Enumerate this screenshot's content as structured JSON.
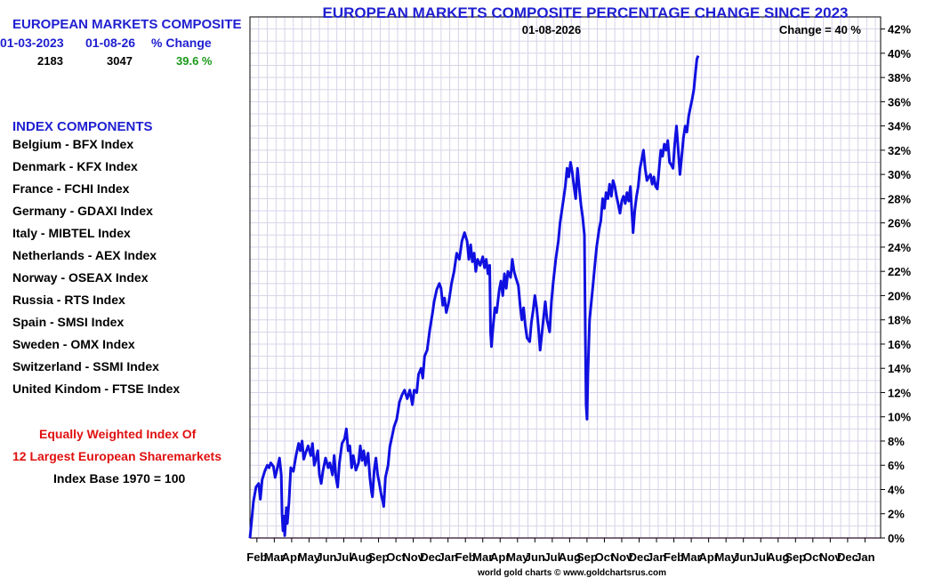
{
  "colors": {
    "accent_blue": "#1f1fd1",
    "positive_green": "#1a9a1a",
    "note_red": "#e01010",
    "line": "#1010e0",
    "grid": "#d8d2e8",
    "zero_line": "#e8a0e8"
  },
  "summary": {
    "title": "EUROPEAN MARKETS COMPOSITE",
    "headers": [
      "01-03-2023",
      "01-08-26",
      "% Change"
    ],
    "values": [
      "2183",
      "3047",
      "39.6 %"
    ]
  },
  "components": {
    "title": "INDEX COMPONENTS",
    "items": [
      "Belgium - BFX Index",
      "Denmark - KFX Index",
      "France - FCHI Index",
      "Germany - GDAXI Index",
      "Italy - MIBTEL Index",
      "Netherlands - AEX Index",
      "Norway - OSEAX Index",
      "Russia - RTS Index",
      "Spain - SMSI Index",
      "Sweden - OMX Index",
      "Switzerland - SSMI Index",
      "United Kindom - FTSE Index"
    ]
  },
  "notes": {
    "line1": "Equally Weighted Index Of",
    "line2": "12 Largest European Sharemarkets",
    "line3": "Index Base 1970 = 100"
  },
  "chart_data": {
    "type": "line",
    "title": "EUROPEAN MARKETS COMPOSITE PERCENTAGE CHANGE SINCE 2023",
    "date_label": "01-08-2026",
    "change_label": "Change = 40 %",
    "footer": "world gold charts © www.goldchartsrus.com",
    "ylim": [
      0,
      43
    ],
    "y_ticks": [
      "0%",
      "2%",
      "4%",
      "6%",
      "8%",
      "10%",
      "12%",
      "14%",
      "16%",
      "18%",
      "20%",
      "22%",
      "24%",
      "26%",
      "28%",
      "30%",
      "32%",
      "34%",
      "36%",
      "38%",
      "40%",
      "42%"
    ],
    "x_ticks": [
      "Feb",
      "Mar",
      "Apr",
      "May",
      "Jun",
      "Jul",
      "Aug",
      "Sep",
      "Oct",
      "Nov",
      "Dec",
      "Jan",
      "Feb",
      "Mar",
      "Apr",
      "May",
      "Jun",
      "Jul",
      "Aug",
      "Sep",
      "Oct",
      "Nov",
      "Dec",
      "Jan",
      "Feb",
      "Mar",
      "Apr",
      "May",
      "Jun",
      "Jul",
      "Aug",
      "Sep",
      "Oct",
      "Nov",
      "Dec",
      "Jan"
    ],
    "x_tick_labels_shown": [
      "Feb",
      "Mar",
      "Apr",
      "May",
      "Jun",
      "Jul",
      "Aug",
      "Sep",
      "Oct",
      "Nov",
      "Dec",
      "Jan",
      "Feb",
      "Mar",
      "Apr",
      "May",
      "Jun",
      "Jul",
      "Aug",
      "Sep",
      "Oct",
      "Nov",
      "Dec",
      "Jan",
      "Feb",
      "Mar",
      "Apr",
      "May",
      "Jun",
      "Jul",
      "Aug",
      "Sep",
      "Oct",
      "Nov",
      "Dec",
      "Jan"
    ],
    "x_range_months": [
      0,
      36.3
    ],
    "series": [
      {
        "name": "European Markets Composite % change",
        "points": [
          [
            0.0,
            0.0
          ],
          [
            0.1,
            1.5
          ],
          [
            0.2,
            3.0
          ],
          [
            0.35,
            4.2
          ],
          [
            0.5,
            4.5
          ],
          [
            0.6,
            3.2
          ],
          [
            0.7,
            4.8
          ],
          [
            0.85,
            5.5
          ],
          [
            1.0,
            6.0
          ],
          [
            1.1,
            5.8
          ],
          [
            1.2,
            6.2
          ],
          [
            1.35,
            5.9
          ],
          [
            1.45,
            5.0
          ],
          [
            1.55,
            5.6
          ],
          [
            1.7,
            6.6
          ],
          [
            1.8,
            5.2
          ],
          [
            1.85,
            2.0
          ],
          [
            1.9,
            0.6
          ],
          [
            1.95,
            1.8
          ],
          [
            2.0,
            0.2
          ],
          [
            2.1,
            2.5
          ],
          [
            2.15,
            1.2
          ],
          [
            2.25,
            3.0
          ],
          [
            2.35,
            5.8
          ],
          [
            2.5,
            5.5
          ],
          [
            2.65,
            6.8
          ],
          [
            2.8,
            7.8
          ],
          [
            2.9,
            7.2
          ],
          [
            3.0,
            8.0
          ],
          [
            3.1,
            6.5
          ],
          [
            3.2,
            7.0
          ],
          [
            3.35,
            7.6
          ],
          [
            3.5,
            6.8
          ],
          [
            3.6,
            7.8
          ],
          [
            3.7,
            6.0
          ],
          [
            3.8,
            6.5
          ],
          [
            3.9,
            7.2
          ],
          [
            4.0,
            5.2
          ],
          [
            4.1,
            4.5
          ],
          [
            4.2,
            5.5
          ],
          [
            4.35,
            6.6
          ],
          [
            4.5,
            5.8
          ],
          [
            4.6,
            6.2
          ],
          [
            4.75,
            5.2
          ],
          [
            4.85,
            6.8
          ],
          [
            4.95,
            5.0
          ],
          [
            5.05,
            4.2
          ],
          [
            5.15,
            6.2
          ],
          [
            5.3,
            7.8
          ],
          [
            5.45,
            8.2
          ],
          [
            5.55,
            9.0
          ],
          [
            5.65,
            7.2
          ],
          [
            5.75,
            7.6
          ],
          [
            5.85,
            5.8
          ],
          [
            5.95,
            6.8
          ],
          [
            6.1,
            5.6
          ],
          [
            6.25,
            6.2
          ],
          [
            6.35,
            7.6
          ],
          [
            6.45,
            6.4
          ],
          [
            6.55,
            7.2
          ],
          [
            6.65,
            6.0
          ],
          [
            6.8,
            7.0
          ],
          [
            6.9,
            5.0
          ],
          [
            7.0,
            3.8
          ],
          [
            7.05,
            3.4
          ],
          [
            7.15,
            5.6
          ],
          [
            7.25,
            6.6
          ],
          [
            7.35,
            5.2
          ],
          [
            7.45,
            4.5
          ],
          [
            7.55,
            3.6
          ],
          [
            7.65,
            3.0
          ],
          [
            7.7,
            2.6
          ],
          [
            7.8,
            5.0
          ],
          [
            7.95,
            6.0
          ],
          [
            8.05,
            7.5
          ],
          [
            8.15,
            8.2
          ],
          [
            8.3,
            9.2
          ],
          [
            8.45,
            9.8
          ],
          [
            8.6,
            11.2
          ],
          [
            8.75,
            11.8
          ],
          [
            8.9,
            12.2
          ],
          [
            9.05,
            11.5
          ],
          [
            9.2,
            12.2
          ],
          [
            9.35,
            11.0
          ],
          [
            9.45,
            12.2
          ],
          [
            9.6,
            12.0
          ],
          [
            9.7,
            13.5
          ],
          [
            9.85,
            14.0
          ],
          [
            9.95,
            13.2
          ],
          [
            10.05,
            15.0
          ],
          [
            10.2,
            15.5
          ],
          [
            10.35,
            17.2
          ],
          [
            10.5,
            18.5
          ],
          [
            10.6,
            19.5
          ],
          [
            10.75,
            20.5
          ],
          [
            10.9,
            21.0
          ],
          [
            11.0,
            20.6
          ],
          [
            11.1,
            19.2
          ],
          [
            11.2,
            19.8
          ],
          [
            11.3,
            18.6
          ],
          [
            11.45,
            19.5
          ],
          [
            11.6,
            21.0
          ],
          [
            11.75,
            22.0
          ],
          [
            11.9,
            23.5
          ],
          [
            12.05,
            23.0
          ],
          [
            12.2,
            24.5
          ],
          [
            12.35,
            25.2
          ],
          [
            12.5,
            24.5
          ],
          [
            12.6,
            23.0
          ],
          [
            12.7,
            24.2
          ],
          [
            12.8,
            22.8
          ],
          [
            12.9,
            23.5
          ],
          [
            13.0,
            22.0
          ],
          [
            13.1,
            23.0
          ],
          [
            13.25,
            22.5
          ],
          [
            13.4,
            23.2
          ],
          [
            13.5,
            22.3
          ],
          [
            13.6,
            23.0
          ],
          [
            13.7,
            21.8
          ],
          [
            13.8,
            22.5
          ],
          [
            13.85,
            17.0
          ],
          [
            13.9,
            15.8
          ],
          [
            14.0,
            17.5
          ],
          [
            14.1,
            19.0
          ],
          [
            14.2,
            18.6
          ],
          [
            14.35,
            20.5
          ],
          [
            14.45,
            21.2
          ],
          [
            14.55,
            20.0
          ],
          [
            14.65,
            21.8
          ],
          [
            14.75,
            20.6
          ],
          [
            14.85,
            22.0
          ],
          [
            15.0,
            21.5
          ],
          [
            15.1,
            23.0
          ],
          [
            15.2,
            22.0
          ],
          [
            15.3,
            21.5
          ],
          [
            15.45,
            20.8
          ],
          [
            15.55,
            19.2
          ],
          [
            15.65,
            18.0
          ],
          [
            15.75,
            19.0
          ],
          [
            15.85,
            17.5
          ],
          [
            15.95,
            16.5
          ],
          [
            16.1,
            16.2
          ],
          [
            16.2,
            17.8
          ],
          [
            16.3,
            18.8
          ],
          [
            16.4,
            20.0
          ],
          [
            16.5,
            19.0
          ],
          [
            16.6,
            17.5
          ],
          [
            16.7,
            15.5
          ],
          [
            16.8,
            16.8
          ],
          [
            16.9,
            18.2
          ],
          [
            17.0,
            19.5
          ],
          [
            17.1,
            18.0
          ],
          [
            17.25,
            17.0
          ],
          [
            17.35,
            19.5
          ],
          [
            17.45,
            21.0
          ],
          [
            17.6,
            23.0
          ],
          [
            17.75,
            24.5
          ],
          [
            17.85,
            26.0
          ],
          [
            18.0,
            27.5
          ],
          [
            18.15,
            29.0
          ],
          [
            18.25,
            30.5
          ],
          [
            18.35,
            29.8
          ],
          [
            18.45,
            31.0
          ],
          [
            18.55,
            30.2
          ],
          [
            18.65,
            29.0
          ],
          [
            18.75,
            28.0
          ],
          [
            18.85,
            30.5
          ],
          [
            18.95,
            29.0
          ],
          [
            19.05,
            27.5
          ],
          [
            19.15,
            26.5
          ],
          [
            19.25,
            25.0
          ],
          [
            19.3,
            17.0
          ],
          [
            19.35,
            11.0
          ],
          [
            19.4,
            9.8
          ],
          [
            19.45,
            13.5
          ],
          [
            19.55,
            18.0
          ],
          [
            19.65,
            19.5
          ],
          [
            19.75,
            21.0
          ],
          [
            19.85,
            22.5
          ],
          [
            19.95,
            24.0
          ],
          [
            20.1,
            25.5
          ],
          [
            20.2,
            26.2
          ],
          [
            20.3,
            28.0
          ],
          [
            20.4,
            27.2
          ],
          [
            20.5,
            28.5
          ],
          [
            20.6,
            28.0
          ],
          [
            20.7,
            29.2
          ],
          [
            20.8,
            28.2
          ],
          [
            20.9,
            29.5
          ],
          [
            21.0,
            29.0
          ],
          [
            21.1,
            28.2
          ],
          [
            21.2,
            27.5
          ],
          [
            21.3,
            26.8
          ],
          [
            21.4,
            27.8
          ],
          [
            21.5,
            28.2
          ],
          [
            21.6,
            27.6
          ],
          [
            21.7,
            28.5
          ],
          [
            21.8,
            27.8
          ],
          [
            21.9,
            29.0
          ],
          [
            22.0,
            26.5
          ],
          [
            22.05,
            25.2
          ],
          [
            22.15,
            27.0
          ],
          [
            22.25,
            28.2
          ],
          [
            22.35,
            29.0
          ],
          [
            22.45,
            30.5
          ],
          [
            22.55,
            31.2
          ],
          [
            22.65,
            32.0
          ],
          [
            22.75,
            30.5
          ],
          [
            22.85,
            29.5
          ],
          [
            22.95,
            29.8
          ],
          [
            23.05,
            30.0
          ],
          [
            23.15,
            29.2
          ],
          [
            23.25,
            29.8
          ],
          [
            23.35,
            29.0
          ],
          [
            23.45,
            28.8
          ],
          [
            23.55,
            30.5
          ],
          [
            23.65,
            32.0
          ],
          [
            23.75,
            31.5
          ],
          [
            23.85,
            32.5
          ],
          [
            23.95,
            32.0
          ],
          [
            24.05,
            32.8
          ],
          [
            24.15,
            31.0
          ],
          [
            24.25,
            30.8
          ],
          [
            24.35,
            30.5
          ],
          [
            24.45,
            32.5
          ],
          [
            24.55,
            34.0
          ],
          [
            24.65,
            32.0
          ],
          [
            24.75,
            30.0
          ],
          [
            24.85,
            31.5
          ],
          [
            24.95,
            33.0
          ],
          [
            25.05,
            34.0
          ],
          [
            25.15,
            33.5
          ],
          [
            25.25,
            34.8
          ],
          [
            25.35,
            35.5
          ],
          [
            25.45,
            36.2
          ],
          [
            25.55,
            37.0
          ],
          [
            25.65,
            38.5
          ],
          [
            25.72,
            39.5
          ],
          [
            25.8,
            39.8
          ]
        ]
      }
    ]
  }
}
